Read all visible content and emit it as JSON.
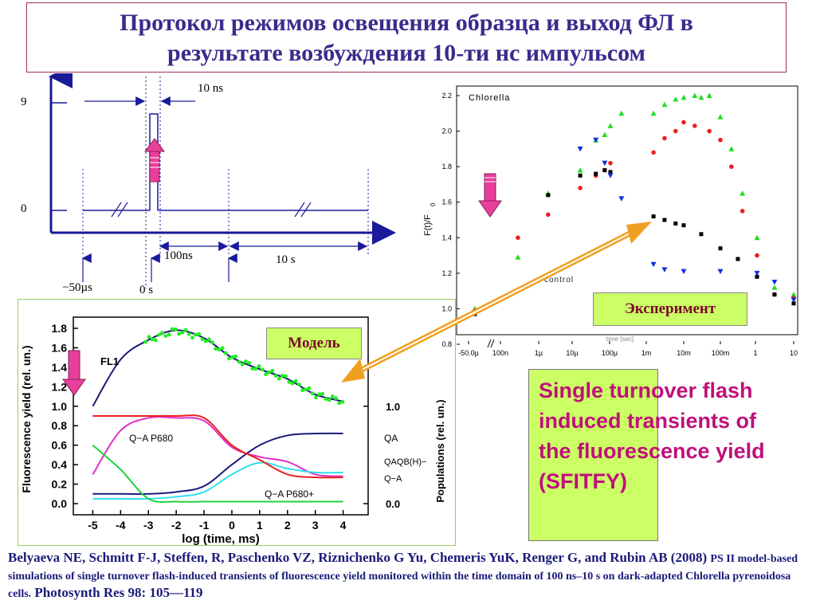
{
  "title": {
    "line1": "Протокол режимов освещения образца и выход ФЛ в",
    "line2": "результате возбуждения 10-ти нс импульсом"
  },
  "protocol": {
    "y_high": "9",
    "y_low": "0",
    "pulse_width": "10 ns",
    "interval_100ns": "100ns",
    "interval_10s": "10 s",
    "time_minus50": "−50µs",
    "time_zero": "0 s"
  },
  "experiment": {
    "sample_label": "Chlorella",
    "control_label": "control",
    "ylabel": "F(t)/F",
    "ylabel_sub": "0",
    "xlabel_hidden": "time [sec]",
    "yticks": [
      "2.2",
      "2.0",
      "1.8",
      "1.6",
      "1.4",
      "1.2",
      "1.0",
      "0.8"
    ],
    "xticks": [
      "-50.0µ",
      "100n",
      "1µ",
      "10µ",
      "100µ",
      "1m",
      "10m",
      "100m",
      "1",
      "10"
    ],
    "badge": "Эксперимент"
  },
  "model": {
    "badge": "Модель",
    "ylabel": "Fluorescence yield (rel. un.)",
    "ylabel_right": "Populations (rel. un.)",
    "xlabel": "log (time, ms)",
    "yticks": [
      "1.8",
      "1.6",
      "1.4",
      "1.2",
      "1.0",
      "0.8",
      "0.6",
      "0.4",
      "0.2",
      "0.0"
    ],
    "yticks_right": [
      "1.0",
      "0.0"
    ],
    "xticks": [
      "-5",
      "-4",
      "-3",
      "-2",
      "-1",
      "0",
      "1",
      "2",
      "3",
      "4"
    ],
    "curve_fl1": "FL1",
    "curve_qa_p680": "Q−A P680",
    "curve_qa": "QA",
    "curve_qaqb": "QAQB(H)−",
    "curve_qa_minus": "Q−A",
    "curve_qa_p680plus": "Q−A P680+"
  },
  "sfitfy_text": "Single turnover flash induced transients of the fluorescence yield (SFITFY)",
  "citation": {
    "authors": "Belyaeva NE, Schmitt F-J, Steffen, R, Paschenko VZ, Riznichenko G Yu, Chemeris YuK, Renger G, and Rubin AB (2008)",
    "title": "PS II model-based simulations of single turnover flash-induced transients of fluorescence yield monitored within the time domain of 100 ns–10 s on dark-adapted Chlorella pyrenoidosa cells.",
    "journal": "Photosynth Res 98: 105—119"
  },
  "colors": {
    "title": "#3c2a8c",
    "badge_bg": "#ccff66",
    "magenta": "#e8409a",
    "red": "#e82020",
    "green": "#20d020",
    "blue": "#1030e0",
    "black": "#000000",
    "orange_arrow": "#f0a020"
  },
  "chart_data": [
    {
      "type": "line",
      "title": "",
      "description_hidden": "protocol",
      "xlabel": "",
      "ylabel": "",
      "series": [
        {
          "name": "",
          "values": [
            0,
            9,
            0
          ]
        }
      ]
    },
    {
      "type": "scatter",
      "title": "Chlorella",
      "xlabel": "time [sec]",
      "ylabel": "F(t)/F0",
      "ylim": [
        0.8,
        2.2
      ],
      "x_scale": "log",
      "x_tick_labels": [
        "-50.0µ",
        "100n",
        "1µ",
        "10µ",
        "100µ",
        "1m",
        "10m",
        "100m",
        "1",
        "10"
      ],
      "series": [
        {
          "name": "",
          "color": "green",
          "x": [
            -5e-05,
            3e-07,
            2e-06,
            1.5e-05,
            4e-05,
            7e-05,
            0.0001,
            0.0002,
            0.0015,
            0.003,
            0.006,
            0.01,
            0.02,
            0.03,
            0.05,
            0.1,
            0.2,
            0.4,
            1,
            3,
            10
          ],
          "y": [
            1.0,
            1.29,
            1.65,
            1.78,
            1.95,
            1.98,
            2.03,
            2.1,
            2.1,
            2.15,
            2.18,
            2.19,
            2.2,
            2.19,
            2.2,
            2.08,
            1.9,
            1.65,
            1.4,
            1.12,
            1.08
          ]
        },
        {
          "name": "",
          "color": "red",
          "x": [
            -5e-05,
            3e-07,
            2e-06,
            1.5e-05,
            4e-05,
            7e-05,
            0.0001,
            0.0015,
            0.003,
            0.006,
            0.01,
            0.02,
            0.05,
            0.1,
            0.2,
            0.4,
            1,
            3,
            10
          ],
          "y": [
            0.99,
            1.4,
            1.53,
            1.68,
            1.75,
            1.78,
            1.82,
            1.88,
            1.96,
            2.0,
            2.05,
            2.03,
            2.0,
            1.95,
            1.8,
            1.55,
            1.3,
            1.08,
            1.06
          ]
        },
        {
          "name": "control",
          "color": "black",
          "x": [
            -5e-05,
            2e-06,
            1.5e-05,
            4e-05,
            7e-05,
            0.0001,
            0.0015,
            0.003,
            0.006,
            0.01,
            0.03,
            0.1,
            0.3,
            1,
            3,
            10
          ],
          "y": [
            0.97,
            1.64,
            1.75,
            1.76,
            1.78,
            1.77,
            1.52,
            1.5,
            1.48,
            1.47,
            1.42,
            1.34,
            1.28,
            1.18,
            1.08,
            1.03
          ]
        },
        {
          "name": "",
          "color": "blue",
          "x": [
            -5e-05,
            1.5e-05,
            4e-05,
            7e-05,
            0.0001,
            0.0002,
            0.0015,
            0.003,
            0.01,
            0.1,
            1,
            3,
            10
          ],
          "y": [
            0.98,
            1.9,
            1.95,
            1.82,
            1.75,
            1.62,
            1.25,
            1.22,
            1.21,
            1.21,
            1.2,
            1.15,
            1.05
          ]
        }
      ]
    },
    {
      "type": "line",
      "title": "",
      "xlabel": "log (time, ms)",
      "ylabel": "Fluorescence yield (rel. un.)",
      "ylim": [
        0.0,
        1.8
      ],
      "x": [
        -5,
        -4,
        -3,
        -2,
        -1,
        0,
        1,
        2,
        3,
        4
      ],
      "series": [
        {
          "name": "FL1",
          "color": "navy",
          "values": [
            1.0,
            1.48,
            1.68,
            1.78,
            1.7,
            1.5,
            1.38,
            1.28,
            1.12,
            1.05
          ]
        },
        {
          "name": "Q−A P680",
          "color": "magenta",
          "values": [
            0.3,
            0.75,
            0.88,
            0.88,
            0.85,
            0.58,
            0.48,
            0.43,
            0.3,
            0.28
          ]
        },
        {
          "name": "QA",
          "color": "navy",
          "values": [
            0.1,
            0.1,
            0.1,
            0.12,
            0.18,
            0.4,
            0.6,
            0.7,
            0.72,
            0.72
          ]
        },
        {
          "name": "QAQB(H)−",
          "color": "cyan",
          "values": [
            0.05,
            0.05,
            0.05,
            0.07,
            0.12,
            0.3,
            0.42,
            0.36,
            0.32,
            0.32
          ]
        },
        {
          "name": "",
          "color": "red",
          "values": [
            0.9,
            0.9,
            0.9,
            0.9,
            0.88,
            0.6,
            0.45,
            0.3,
            0.27,
            0.27
          ]
        },
        {
          "name": "Q−A P680+",
          "color": "green",
          "values": [
            0.6,
            0.35,
            0.05,
            0.02,
            0.02,
            0.02,
            0.02,
            0.02,
            0.02,
            0.02
          ]
        }
      ]
    }
  ]
}
